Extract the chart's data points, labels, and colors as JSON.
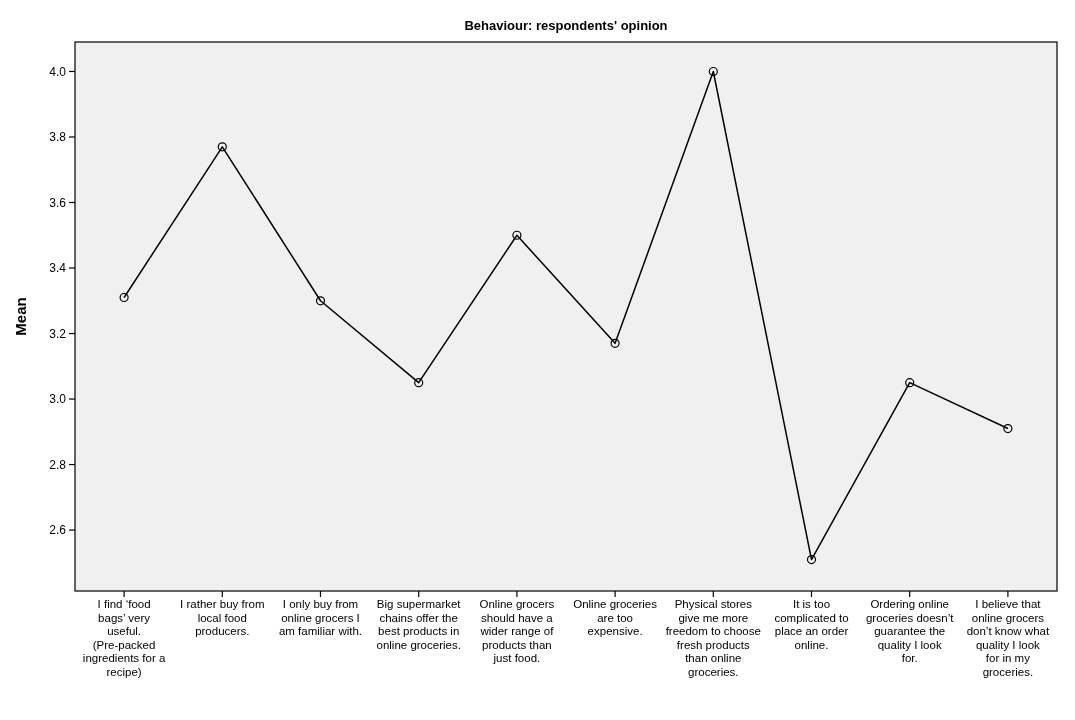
{
  "chart_data": {
    "type": "line",
    "title": "Behaviour: respondents' opinion",
    "ylabel": "Mean",
    "categories": [
      "I find ‘food bags’ very useful. (Pre-packed ingredients for a recipe)",
      "I rather buy from local food producers.",
      "I only buy from online grocers I am familiar with.",
      "Big supermarket chains offer the best products in online groceries.",
      "Online grocers should have a wider range of products than just food.",
      "Online groceries are too expensive.",
      "Physical stores give me more freedom to choose fresh products than online groceries.",
      "It is too complicated to place an order online.",
      "Ordering online groceries doesn’t guarantee the quality I look for.",
      "I believe that online grocers don’t know what quality I look for in my groceries."
    ],
    "values": [
      3.31,
      3.77,
      3.3,
      3.05,
      3.5,
      3.17,
      4.0,
      2.51,
      3.05,
      2.91
    ],
    "color": "#000000",
    "marker": "circle",
    "line_style": "solid",
    "ylim": [
      2.414,
      4.09
    ],
    "yticks": [
      {
        "value": 2.6,
        "label": "2.6"
      },
      {
        "value": 2.8,
        "label": "2.8"
      },
      {
        "value": 3,
        "label": "3.0"
      },
      {
        "value": 3.2,
        "label": "3.2"
      },
      {
        "value": 3.4,
        "label": "3.4"
      },
      {
        "value": 3.6,
        "label": "3.6"
      },
      {
        "value": 3.8,
        "label": "3.8"
      },
      {
        "value": 4,
        "label": "4.0"
      }
    ],
    "grid": false
  }
}
